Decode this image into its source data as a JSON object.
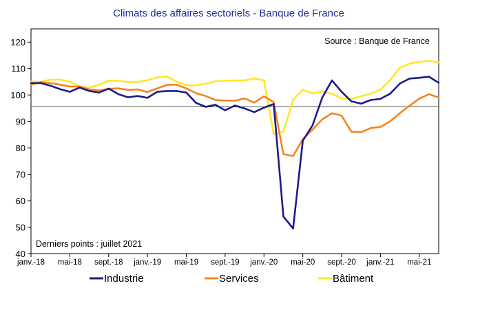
{
  "chart_data": {
    "type": "line",
    "title": "Climats des affaires sectoriels  - Banque de France",
    "source": "Source : Banque de France",
    "note": "Derniers points : juillet 2021",
    "ylim": [
      40,
      125
    ],
    "yticks": [
      40,
      50,
      60,
      70,
      80,
      90,
      100,
      110,
      120
    ],
    "reference_line": 95.5,
    "grid": false,
    "legend_position": "bottom",
    "x_tick_labels": [
      "janv.-18",
      "mai-18",
      "sept.-18",
      "janv.-19",
      "mai-19",
      "sept.-19",
      "janv.-20",
      "mai-20",
      "sept.-20",
      "janv.-21",
      "mai-21"
    ],
    "x_months": [
      "2018-01",
      "2018-02",
      "2018-03",
      "2018-04",
      "2018-05",
      "2018-06",
      "2018-07",
      "2018-08",
      "2018-09",
      "2018-10",
      "2018-11",
      "2018-12",
      "2019-01",
      "2019-02",
      "2019-03",
      "2019-04",
      "2019-05",
      "2019-06",
      "2019-07",
      "2019-08",
      "2019-09",
      "2019-10",
      "2019-11",
      "2019-12",
      "2020-01",
      "2020-02",
      "2020-03",
      "2020-04",
      "2020-05",
      "2020-06",
      "2020-07",
      "2020-08",
      "2020-09",
      "2020-10",
      "2020-11",
      "2020-12",
      "2021-01",
      "2021-02",
      "2021-03",
      "2021-04",
      "2021-05",
      "2021-06",
      "2021-07"
    ],
    "series": [
      {
        "name": "Industrie",
        "color": "#1b1b8c",
        "values": [
          104.5,
          104.5,
          103.5,
          102.2,
          101.2,
          102.8,
          101.5,
          100.9,
          102.4,
          100.3,
          99.1,
          99.6,
          98.9,
          101.2,
          101.5,
          101.5,
          100.9,
          97.0,
          95.5,
          96.3,
          94.2,
          96.0,
          94.9,
          93.5,
          95.2,
          96.6,
          54.0,
          49.5,
          82.7,
          88.5,
          99.0,
          105.5,
          101.2,
          97.6,
          96.7,
          98.1,
          98.5,
          100.5,
          104.3,
          106.2,
          106.5,
          106.9,
          104.6
        ]
      },
      {
        "name": "Services",
        "color": "#f5841f",
        "values": [
          104.0,
          104.8,
          104.5,
          103.9,
          103.2,
          103.2,
          102.1,
          101.7,
          102.3,
          102.5,
          101.9,
          102.1,
          101.1,
          102.5,
          103.8,
          103.9,
          102.5,
          100.7,
          99.6,
          98.1,
          97.9,
          97.8,
          98.7,
          97.1,
          99.5,
          97.3,
          77.6,
          76.9,
          83.3,
          86.9,
          90.8,
          93.1,
          92.2,
          86.1,
          85.9,
          87.5,
          87.9,
          90.0,
          93.1,
          95.9,
          98.6,
          100.3,
          99.0
        ]
      },
      {
        "name": "Bâtiment",
        "color": "#ffe62b",
        "values": [
          105.0,
          105.0,
          105.8,
          105.8,
          105.0,
          103.2,
          102.8,
          103.8,
          105.4,
          105.4,
          104.8,
          104.9,
          105.6,
          106.6,
          107.0,
          105.0,
          103.7,
          103.6,
          104.2,
          105.2,
          105.4,
          105.5,
          105.5,
          106.2,
          105.5,
          85.2,
          86.1,
          98.2,
          102.0,
          100.6,
          101.3,
          100.5,
          98.7,
          98.5,
          99.5,
          100.5,
          102.0,
          105.6,
          110.3,
          111.9,
          112.5,
          112.9,
          112.3
        ]
      }
    ]
  }
}
